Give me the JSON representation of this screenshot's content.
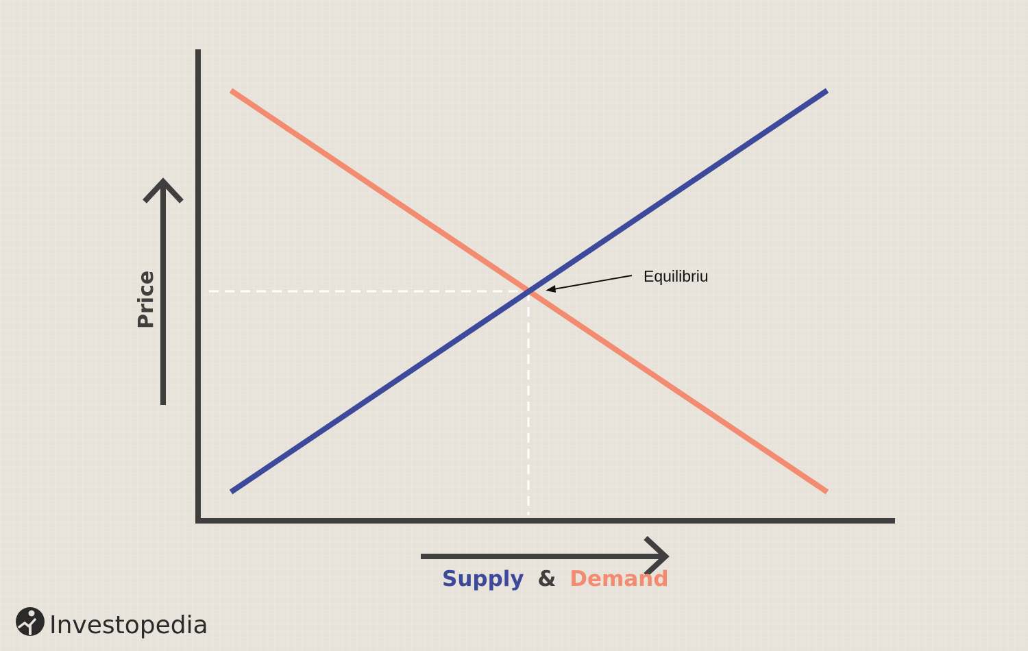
{
  "diagram": {
    "y_axis_label": "Price",
    "x_axis_label": {
      "supply": "Supply",
      "ampersand": "&",
      "demand": "Demand"
    },
    "equilibrium_label": "Equilibriu",
    "colors": {
      "supply": "#3d4a9c",
      "demand": "#f28b70",
      "axis": "#3f3f3f",
      "guide": "#ffffff",
      "background": "#e8e3da"
    }
  },
  "branding": {
    "logo_text": "Investopedia",
    "logo_icon": "investopedia-i-icon"
  }
}
